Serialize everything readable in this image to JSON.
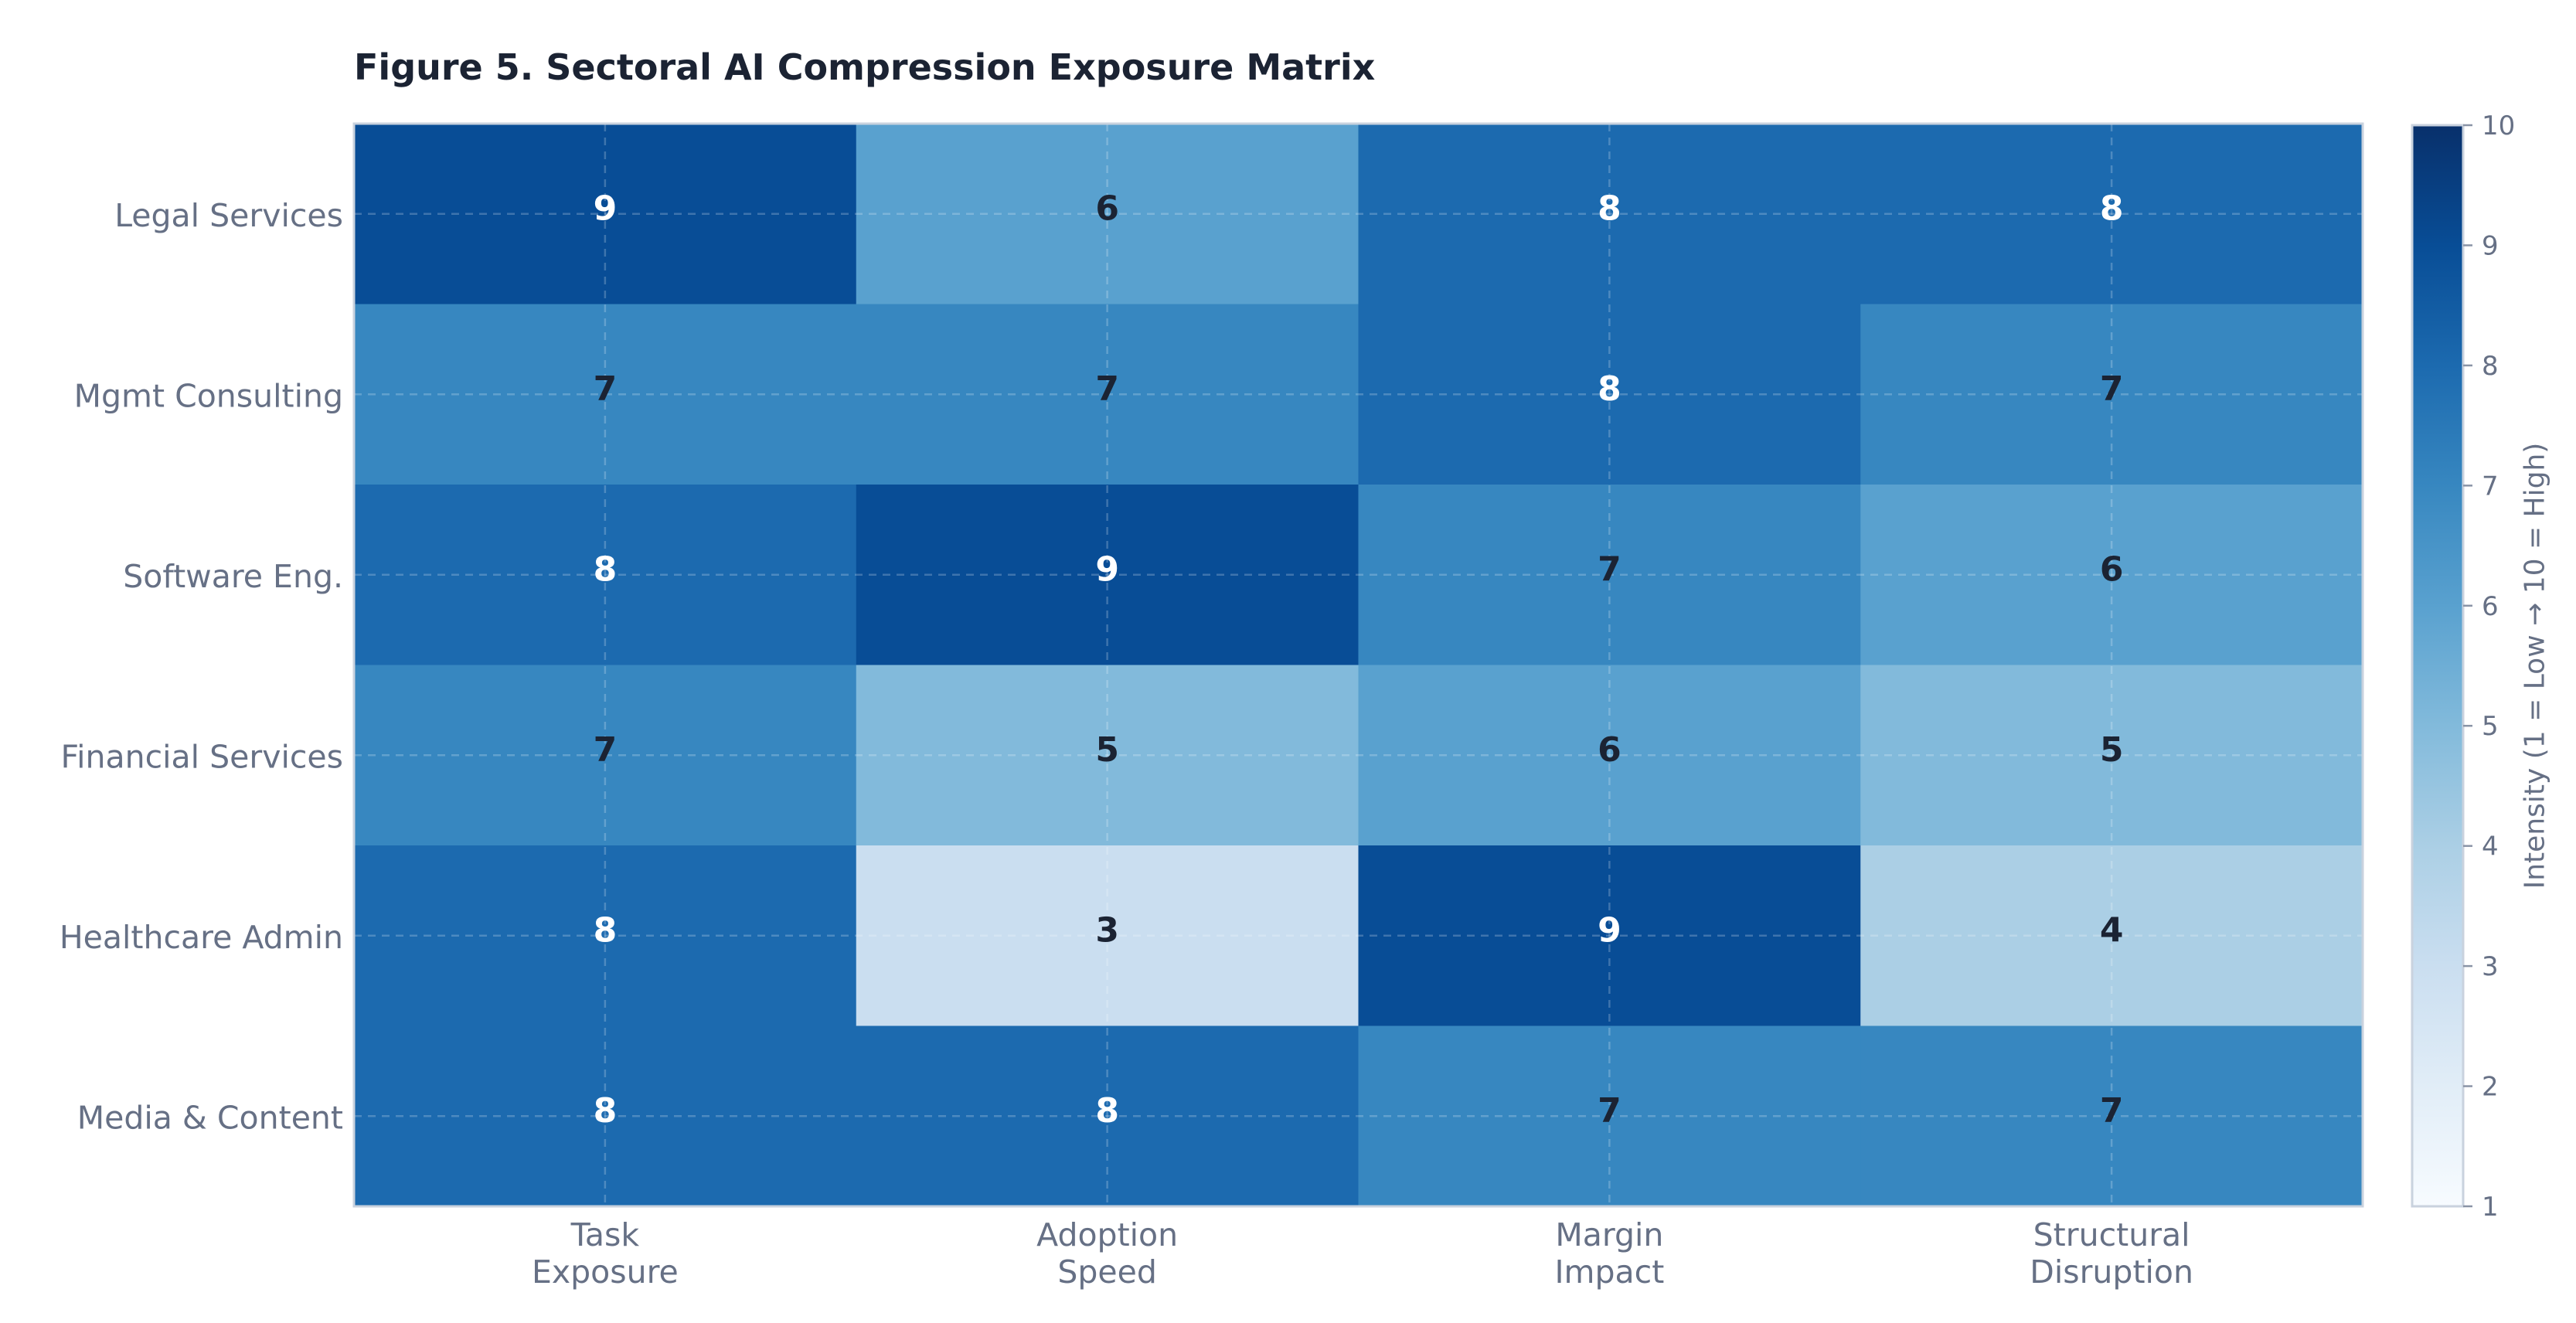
{
  "chart_data": {
    "type": "heatmap",
    "title": "Figure 5.  Sectoral AI Compression Exposure Matrix",
    "rows": [
      "Legal Services",
      "Mgmt Consulting",
      "Software Eng.",
      "Financial Services",
      "Healthcare Admin",
      "Media & Content"
    ],
    "columns": [
      [
        "Task",
        "Exposure"
      ],
      [
        "Adoption",
        "Speed"
      ],
      [
        "Margin",
        "Impact"
      ],
      [
        "Structural",
        "Disruption"
      ]
    ],
    "values": [
      [
        9,
        6,
        8,
        8
      ],
      [
        7,
        7,
        8,
        7
      ],
      [
        8,
        9,
        7,
        6
      ],
      [
        7,
        5,
        6,
        5
      ],
      [
        8,
        3,
        9,
        4
      ],
      [
        8,
        8,
        7,
        7
      ]
    ],
    "colorbar": {
      "label": "Intensity (1 = Low → 10 = High)",
      "min": 1,
      "max": 10,
      "ticks": [
        1,
        2,
        3,
        4,
        5,
        6,
        7,
        8,
        9,
        10
      ]
    },
    "colormap": {
      "1": "#f7fbff",
      "2": "#e1edf7",
      "3": "#cadef0",
      "4": "#abcfe5",
      "5": "#82badb",
      "6": "#59a1cf",
      "7": "#3787c0",
      "8": "#1c6aaf",
      "9": "#084d96",
      "10": "#08306b"
    },
    "grid": true,
    "legend": "right"
  }
}
